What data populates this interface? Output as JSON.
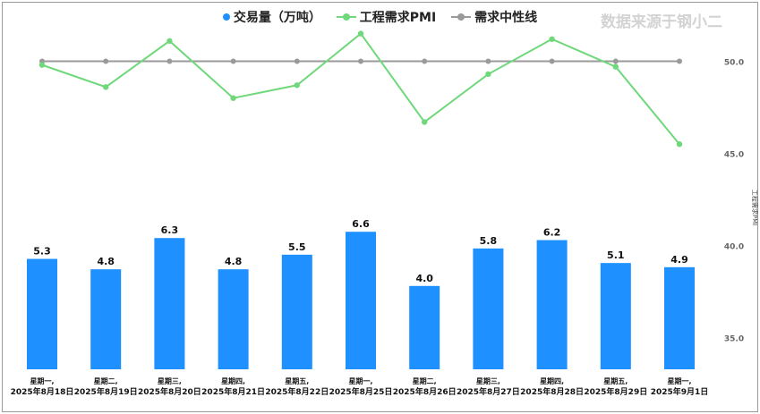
{
  "watermark": "数据来源于钢小二",
  "legend": {
    "volume": "交易量（万吨）",
    "pmi": "工程需求PMI",
    "neutral": "需求中性线"
  },
  "colors": {
    "bar": "#1e90ff",
    "pmi": "#6fd87a",
    "neutral": "#9a9a9a"
  },
  "chart_data": {
    "type": "bar",
    "categories": [
      [
        "星期一,",
        "2025年8月18日"
      ],
      [
        "星期二,",
        "2025年8月19日"
      ],
      [
        "星期三,",
        "2025年8月20日"
      ],
      [
        "星期四,",
        "2025年8月21日"
      ],
      [
        "星期五,",
        "2025年8月22日"
      ],
      [
        "星期一,",
        "2025年8月25日"
      ],
      [
        "星期二,",
        "2025年8月26日"
      ],
      [
        "星期三,",
        "2025年8月27日"
      ],
      [
        "星期四,",
        "2025年8月28日"
      ],
      [
        "星期五,",
        "2025年8月29日"
      ],
      [
        "星期一,",
        "2025年9月1日"
      ]
    ],
    "series": [
      {
        "name": "交易量（万吨）",
        "type": "bar",
        "values": [
          5.3,
          4.8,
          6.3,
          4.8,
          5.5,
          6.6,
          4.0,
          5.8,
          6.2,
          5.1,
          4.9
        ]
      },
      {
        "name": "工程需求PMI",
        "type": "line",
        "axis": "right",
        "values": [
          49.8,
          48.6,
          51.1,
          48.0,
          48.7,
          51.5,
          46.7,
          49.3,
          51.2,
          49.7,
          45.5
        ]
      },
      {
        "name": "需求中性线",
        "type": "line",
        "axis": "right",
        "values": [
          50,
          50,
          50,
          50,
          50,
          50,
          50,
          50,
          50,
          50,
          50
        ]
      }
    ],
    "y2label": "工程需求PMI",
    "y2lim": [
      32.5,
      52.5
    ],
    "y2ticks": [
      "50.0",
      "45.0",
      "40.0",
      "35.0"
    ],
    "legend_position": "top-center",
    "grid": false
  }
}
